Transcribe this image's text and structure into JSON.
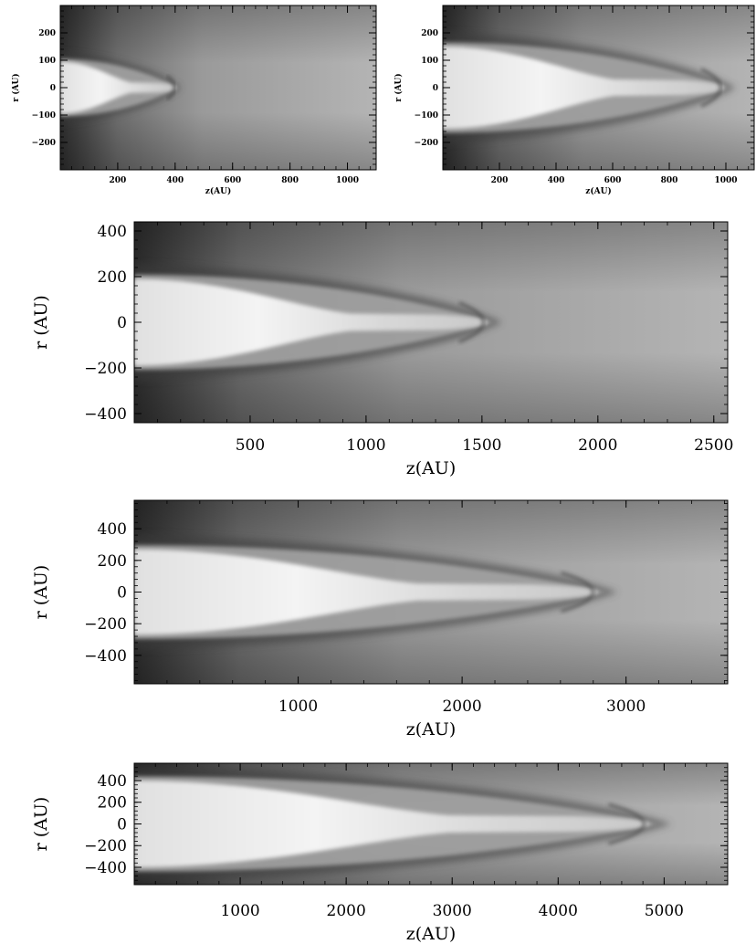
{
  "panels": [
    {
      "id": "p1",
      "xlabel": "z(AU)",
      "ylabel": "r (AU)",
      "xlim": [
        0,
        1100
      ],
      "ylim": [
        -300,
        300
      ],
      "xticks": [
        200,
        400,
        600,
        800,
        1000
      ],
      "yticks": [
        200,
        100,
        0,
        -100,
        -200
      ],
      "xtick_labels": [
        "200",
        "400",
        "600",
        "800",
        "1000"
      ],
      "ytick_labels": [
        "200",
        "100",
        "0",
        "−100",
        "−200"
      ],
      "jet_head_z": 410,
      "jet_radius": 95
    },
    {
      "id": "p2",
      "xlabel": "z(AU)",
      "ylabel": "r (AU)",
      "xlim": [
        0,
        1100
      ],
      "ylim": [
        -300,
        300
      ],
      "xticks": [
        200,
        400,
        600,
        800,
        1000
      ],
      "yticks": [
        200,
        100,
        0,
        -100,
        -200
      ],
      "xtick_labels": [
        "200",
        "400",
        "600",
        "800",
        "1000"
      ],
      "ytick_labels": [
        "200",
        "100",
        "0",
        "−100",
        "−200"
      ],
      "jet_head_z": 1010,
      "jet_radius": 150
    },
    {
      "id": "p3",
      "xlabel": "z(AU)",
      "ylabel": "r (AU)",
      "xlim": [
        0,
        2560
      ],
      "ylim": [
        -440,
        440
      ],
      "xticks": [
        500,
        1000,
        1500,
        2000,
        2500
      ],
      "yticks": [
        400,
        200,
        0,
        -200,
        -400
      ],
      "xtick_labels": [
        "500",
        "1000",
        "1500",
        "2000",
        "2500"
      ],
      "ytick_labels": [
        "400",
        "200",
        "0",
        "−200",
        "−400"
      ],
      "jet_head_z": 1550,
      "jet_radius": 190
    },
    {
      "id": "p4",
      "xlabel": "z(AU)",
      "ylabel": "r (AU)",
      "xlim": [
        0,
        3620
      ],
      "ylim": [
        -580,
        580
      ],
      "xticks": [
        1000,
        2000,
        3000
      ],
      "yticks": [
        400,
        200,
        0,
        -200,
        -400
      ],
      "xtick_labels": [
        "1000",
        "2000",
        "3000"
      ],
      "ytick_labels": [
        "400",
        "200",
        "0",
        "−200",
        "−400"
      ],
      "jet_head_z": 2880,
      "jet_radius": 270
    },
    {
      "id": "p5",
      "xlabel": "z(AU)",
      "ylabel": "r (AU)",
      "xlim": [
        0,
        5600
      ],
      "ylim": [
        -560,
        560
      ],
      "xticks": [
        1000,
        2000,
        3000,
        4000,
        5000
      ],
      "yticks": [
        400,
        200,
        0,
        -200,
        -400
      ],
      "xtick_labels": [
        "1000",
        "2000",
        "3000",
        "4000",
        "5000"
      ],
      "ytick_labels": [
        "400",
        "200",
        "0",
        "−200",
        "−400"
      ],
      "jet_head_z": 4950,
      "jet_radius": 400
    }
  ],
  "colors": {
    "bg_dark": "#2a2a2a",
    "bg_light": "#b0b0b0",
    "jet_core": "#f2f2f2",
    "sheath": "#d0d0d0"
  }
}
